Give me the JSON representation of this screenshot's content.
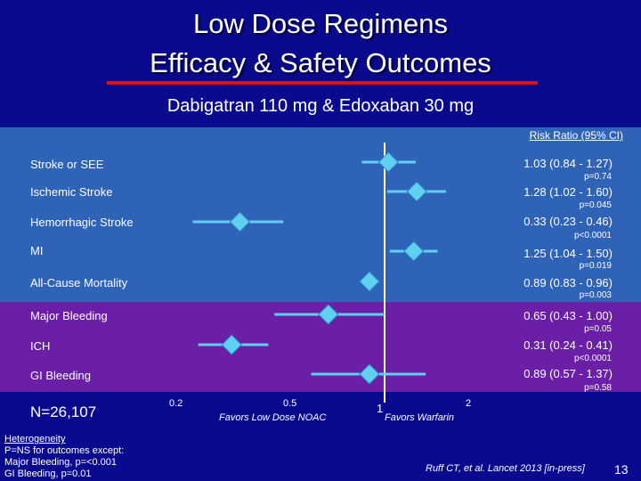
{
  "slide": {
    "title_line1": "Low Dose Regimens",
    "title_line2": "Efficacy & Safety Outcomes",
    "subtitle": "Dabigatran 110 mg & Edoxaban 30 mg",
    "column_header": "Risk Ratio (95% CI)",
    "n_count": "N=26,107",
    "heterogeneity": {
      "heading": "Heterogeneity",
      "line1": "P=NS for outcomes except:",
      "line2": "Major Bleeding, p=<0.001",
      "line3": "GI Bleeding, p=0.01"
    },
    "axis_ticks": [
      "0.2",
      "0.5",
      "1",
      "2"
    ],
    "favors_left": "Favors Low Dose NOAC",
    "favors_right": "Favors Warfarin",
    "citation": "Ruff CT, et al. Lancet 2013 [in-press]",
    "slide_number": "13"
  },
  "chart_data": {
    "type": "forest",
    "xscale": "log",
    "xlim": [
      0.2,
      2
    ],
    "reference_line": 1,
    "rows": [
      {
        "label": "Stroke or SEE",
        "rr": 1.03,
        "lo": 0.84,
        "hi": 1.27,
        "ci_text": "1.03 (0.84 - 1.27)",
        "p_text": "p=0.74",
        "group": "efficacy"
      },
      {
        "label": "Ischemic Stroke",
        "rr": 1.28,
        "lo": 1.02,
        "hi": 1.6,
        "ci_text": "1.28 (1.02 - 1.60)",
        "p_text": "p=0.045",
        "group": "efficacy"
      },
      {
        "label": "Hemorrhagic Stroke",
        "rr": 0.33,
        "lo": 0.23,
        "hi": 0.46,
        "ci_text": "0.33 (0.23 - 0.46)",
        "p_text": "p<0.0001",
        "group": "efficacy"
      },
      {
        "label": "MI",
        "rr": 1.25,
        "lo": 1.04,
        "hi": 1.5,
        "ci_text": "1.25 (1.04 - 1.50)",
        "p_text": "p=0.019",
        "group": "efficacy"
      },
      {
        "label": "All-Cause Mortality",
        "rr": 0.89,
        "lo": 0.83,
        "hi": 0.96,
        "ci_text": "0.89 (0.83 - 0.96)",
        "p_text": "p=0.003",
        "group": "efficacy"
      },
      {
        "label": "Major Bleeding",
        "rr": 0.65,
        "lo": 0.43,
        "hi": 1.0,
        "ci_text": "0.65 (0.43 - 1.00)",
        "p_text": "p=0.05",
        "group": "safety"
      },
      {
        "label": "ICH",
        "rr": 0.31,
        "lo": 0.24,
        "hi": 0.41,
        "ci_text": "0.31 (0.24 - 0.41)",
        "p_text": "p<0.0001",
        "group": "safety"
      },
      {
        "label": "GI Bleeding",
        "rr": 0.89,
        "lo": 0.57,
        "hi": 1.37,
        "ci_text": "0.89 (0.57 - 1.37)",
        "p_text": "p=0.58",
        "group": "safety"
      }
    ]
  },
  "colors": {
    "background": "#0a0a8e",
    "efficacy_band": "#2f63b8",
    "safety_band": "#6a1fa6",
    "title_rule": "#e01010",
    "marker": "#5fd0f0"
  }
}
